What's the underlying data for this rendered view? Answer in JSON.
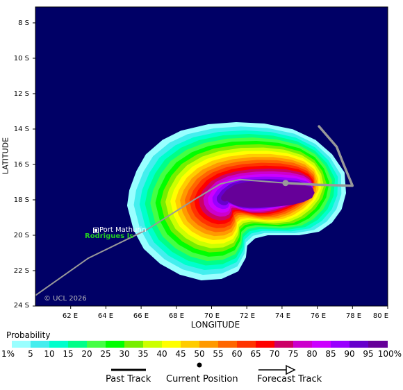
{
  "map": {
    "background_color": "#000066",
    "copyright": "© UCL 2026",
    "axis": {
      "ylabel": "LATITUDE",
      "xlabel": "LONGITUDE",
      "lat_ticks": [
        "8 S",
        "10 S",
        "12 S",
        "14 S",
        "16 S",
        "18 S",
        "20 S",
        "22 S",
        "24 S"
      ],
      "lon_ticks": [
        "62 E",
        "64 E",
        "66 E",
        "68 E",
        "70 E",
        "72 E",
        "74 E",
        "76 E",
        "78 E",
        "80 E"
      ],
      "lon_range": [
        60,
        80
      ],
      "lat_range": [
        -7.1,
        -24
      ]
    },
    "places": {
      "town": "Port Mathurin",
      "island": "Rodrigues Is",
      "island_color": "#22cc22"
    },
    "track": {
      "past": [
        [
          60,
          -23.4
        ],
        [
          63,
          -21.3
        ],
        [
          66.3,
          -19.7
        ],
        [
          69,
          -18
        ],
        [
          70.5,
          -17.1
        ],
        [
          71.6,
          -16.85
        ],
        [
          74.2,
          -17.05
        ]
      ],
      "current": [
        74.2,
        -17.05
      ],
      "forecast": [
        [
          74.2,
          -17.05
        ],
        [
          76,
          -17.15
        ],
        [
          78,
          -17.2
        ],
        [
          77.5,
          -16
        ],
        [
          77.1,
          -15
        ],
        [
          76.1,
          -13.85
        ]
      ],
      "color": "#999999"
    }
  },
  "legend": {
    "title": "Probability",
    "labels": [
      "1%",
      "5",
      "10",
      "15",
      "20",
      "25",
      "30",
      "35",
      "40",
      "45",
      "50",
      "55",
      "60",
      "65",
      "70",
      "75",
      "80",
      "85",
      "90",
      "95",
      "100%"
    ],
    "colors": [
      "#99ffff",
      "#44eeee",
      "#00ffcc",
      "#00ff88",
      "#44ff44",
      "#00ff00",
      "#77ee00",
      "#ccff00",
      "#ffff00",
      "#ffcc00",
      "#ff9900",
      "#ff6600",
      "#ff3300",
      "#ff0000",
      "#cc0066",
      "#cc00cc",
      "#cc00ff",
      "#9900ff",
      "#6600cc",
      "#660099"
    ]
  },
  "key": {
    "past": "Past Track",
    "current": "Current Position",
    "forecast": "Forecast Track"
  }
}
